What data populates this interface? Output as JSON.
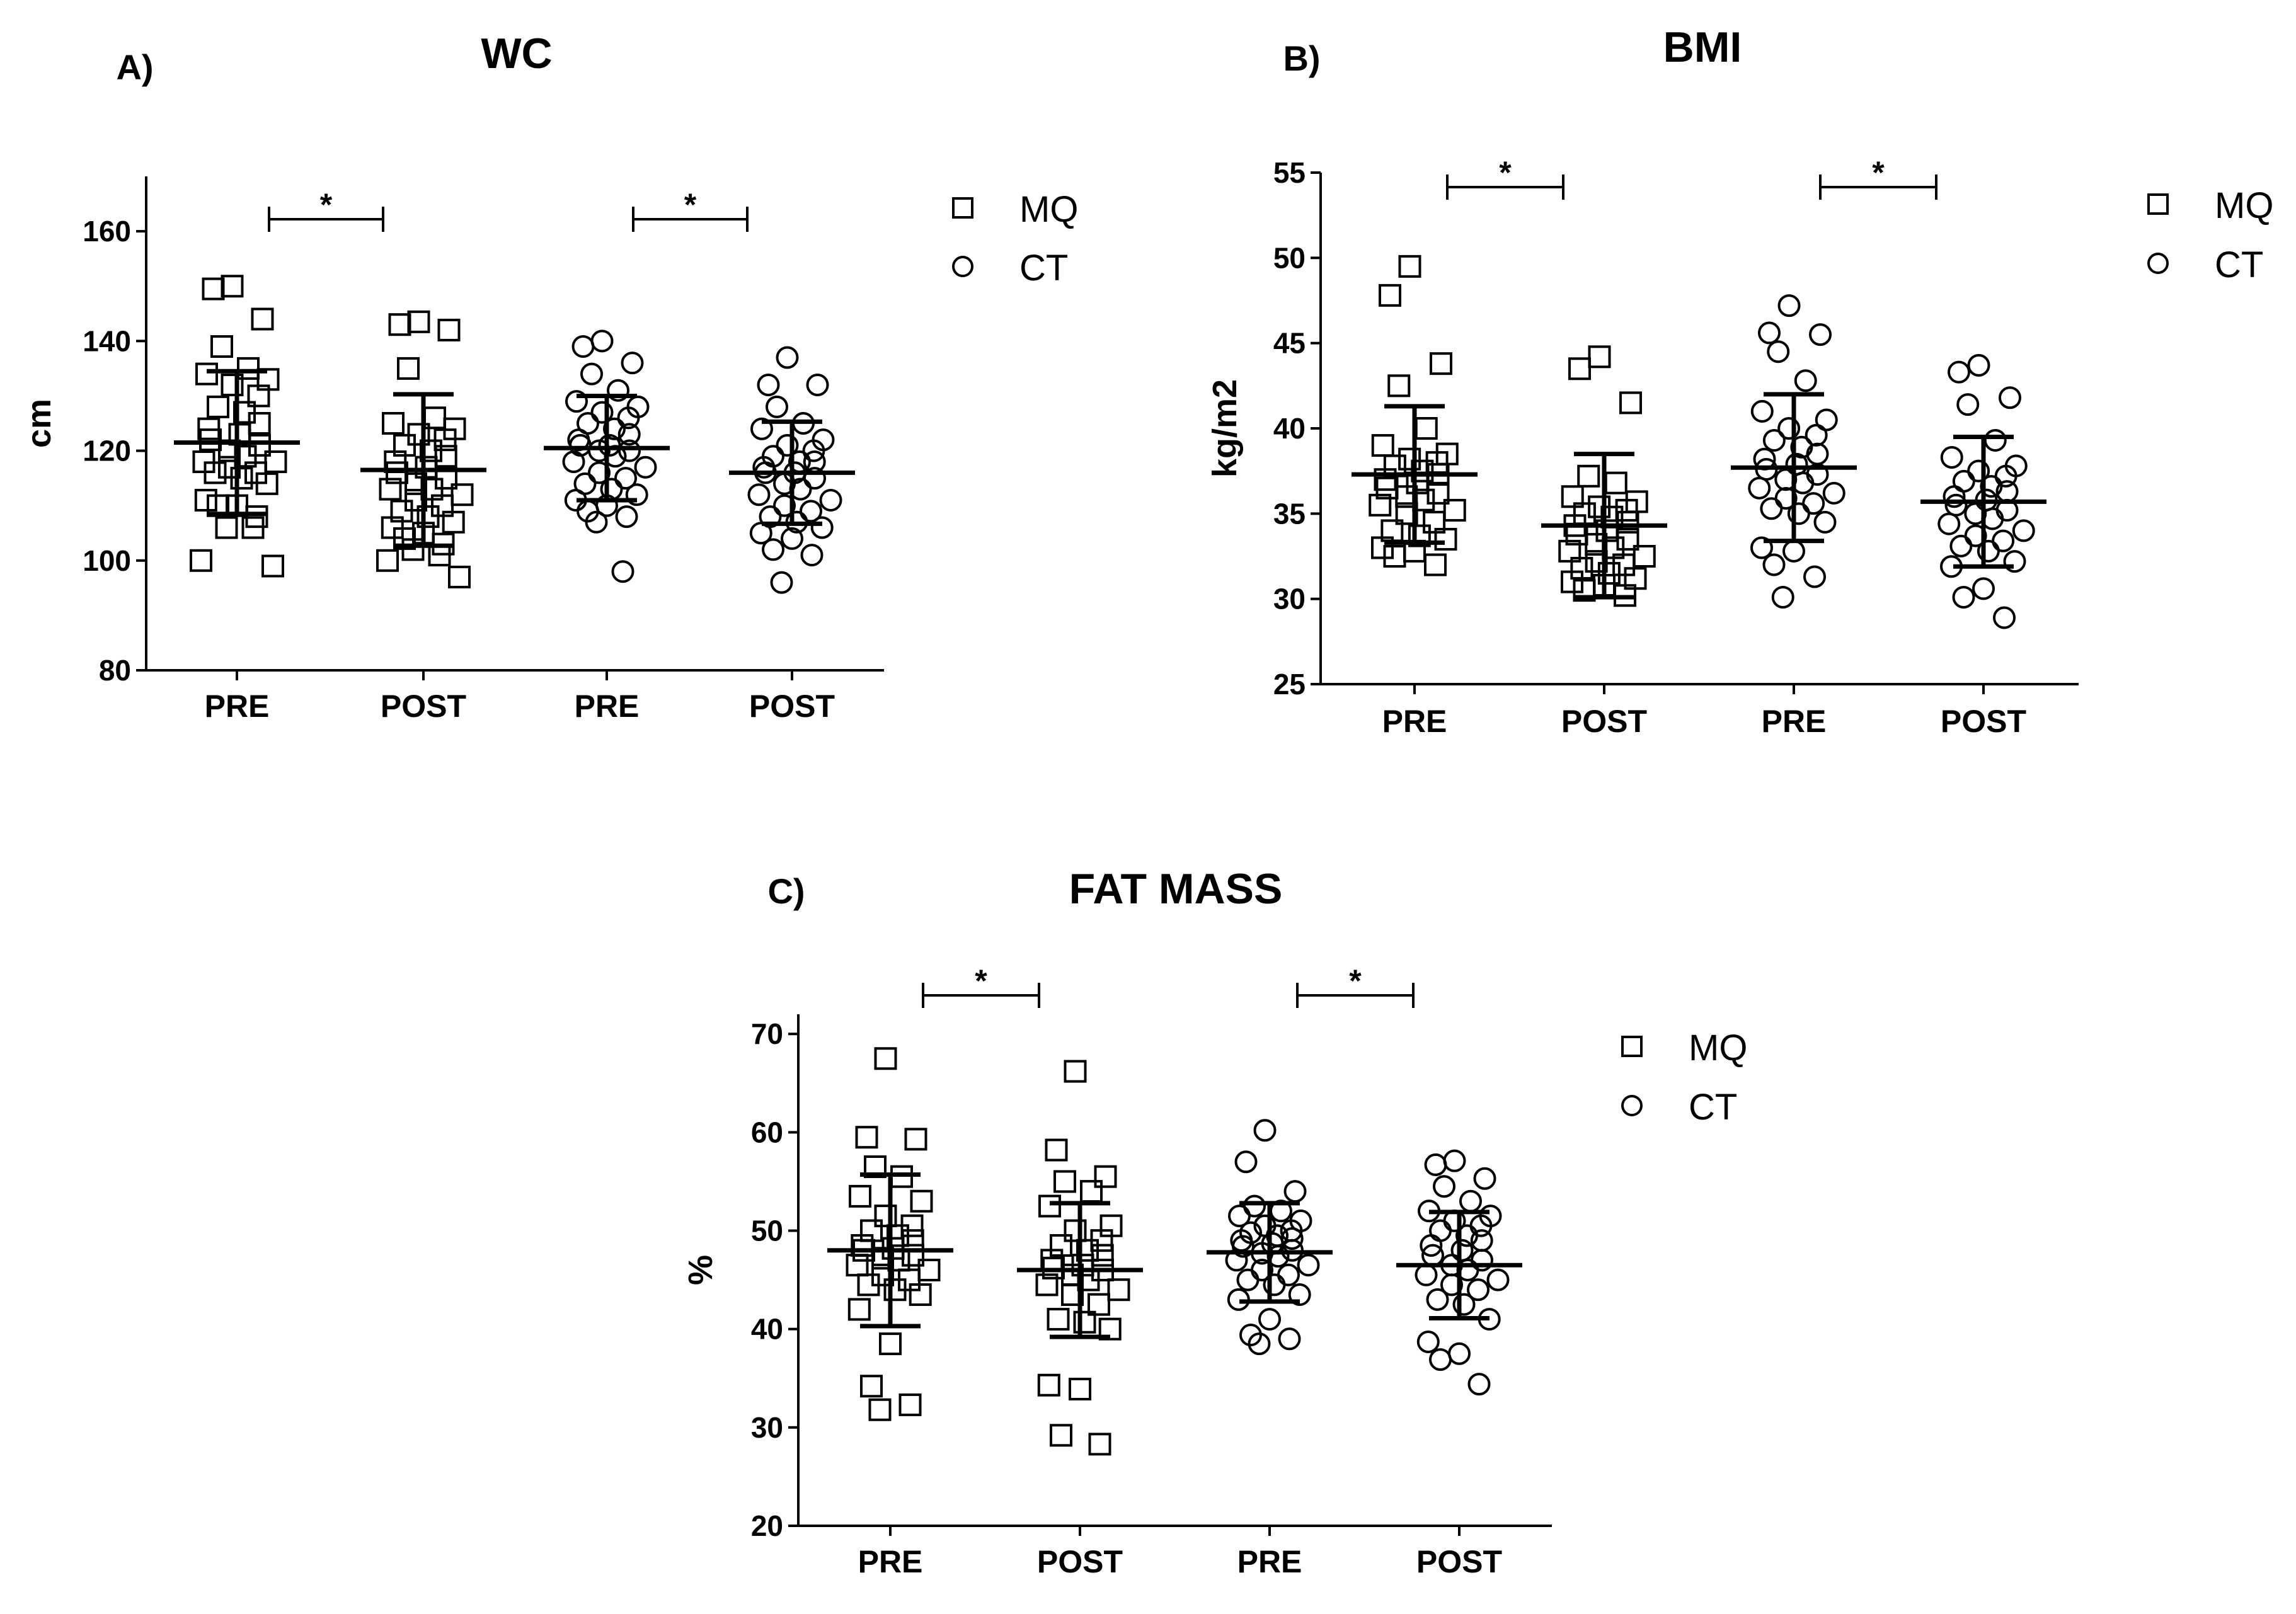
{
  "chart_data": [
    {
      "id": "wc",
      "panel": "A)",
      "type": "scatter",
      "title": "WC",
      "xlabel": "",
      "ylabel": "cm",
      "ylim": [
        80,
        170
      ],
      "yticks": [
        80,
        100,
        120,
        140,
        160
      ],
      "categories": [
        "PRE",
        "POST",
        "PRE",
        "POST"
      ],
      "legend": [
        {
          "label": "MQ",
          "marker": "square"
        },
        {
          "label": "CT",
          "marker": "circle"
        }
      ],
      "legend_position": "top-right",
      "significance": [
        {
          "from": 0,
          "to": 1,
          "label": "*",
          "y": 162
        },
        {
          "from": 2,
          "to": 3,
          "label": "*",
          "y": 162
        }
      ],
      "groups": [
        {
          "marker": "square",
          "mean": 121.5,
          "sd": 13,
          "values": [
            150,
            149.5,
            144,
            139,
            135,
            134,
            133,
            132,
            130,
            128,
            127,
            125,
            124,
            123,
            122,
            121,
            120,
            119,
            118,
            118,
            117,
            116,
            116,
            115,
            114,
            111,
            110,
            110,
            108,
            106,
            106,
            100,
            99
          ]
        },
        {
          "marker": "square",
          "mean": 116.5,
          "sd": 13.8,
          "values": [
            143.5,
            143,
            142,
            135,
            126,
            125,
            124,
            123,
            122,
            121,
            120,
            119,
            118,
            117,
            116,
            115,
            114,
            113,
            113,
            112,
            111,
            110,
            109,
            108,
            107,
            106,
            105,
            104,
            103,
            102,
            101,
            100,
            97
          ]
        },
        {
          "marker": "circle",
          "mean": 120.5,
          "sd": 9.5,
          "values": [
            140,
            139,
            136,
            134,
            131,
            129,
            128,
            127,
            126,
            125,
            124,
            123,
            122,
            121,
            121,
            120,
            120,
            119,
            118,
            117,
            116,
            115,
            114,
            113,
            112,
            111,
            110,
            109,
            108,
            107,
            98
          ]
        },
        {
          "marker": "circle",
          "mean": 116,
          "sd": 9.3,
          "values": [
            137,
            132,
            132,
            128,
            125,
            124,
            122,
            121,
            120,
            119,
            118,
            118,
            117,
            116,
            116,
            115,
            114,
            113,
            112,
            111,
            110,
            109,
            108,
            107,
            106,
            105,
            104,
            102,
            101,
            96
          ]
        }
      ]
    },
    {
      "id": "bmi",
      "panel": "B)",
      "type": "scatter",
      "title": "BMI",
      "xlabel": "",
      "ylabel": "kg/m2",
      "ylim": [
        25,
        55
      ],
      "yticks": [
        25,
        30,
        35,
        40,
        45,
        50,
        55
      ],
      "categories": [
        "PRE",
        "POST",
        "PRE",
        "POST"
      ],
      "legend": [
        {
          "label": "MQ",
          "marker": "square"
        },
        {
          "label": "CT",
          "marker": "circle"
        }
      ],
      "legend_position": "top-right",
      "significance": [
        {
          "from": 0,
          "to": 1,
          "label": "*",
          "y": 54
        },
        {
          "from": 2,
          "to": 3,
          "label": "*",
          "y": 54
        }
      ],
      "groups": [
        {
          "marker": "square",
          "mean": 37.3,
          "sd": 4,
          "values": [
            49.5,
            47.8,
            43.8,
            42.5,
            40,
            39,
            38.5,
            38.2,
            38,
            37.8,
            37.5,
            37.3,
            37,
            36.8,
            36.5,
            36.2,
            36,
            35.8,
            35.5,
            35.2,
            35,
            34.5,
            34,
            33.7,
            33.5,
            33,
            32.8,
            32.5,
            32
          ]
        },
        {
          "marker": "square",
          "mean": 34.3,
          "sd": 4.2,
          "values": [
            44.2,
            43.5,
            41.5,
            37.2,
            36.8,
            36,
            35.7,
            35.4,
            35.2,
            35,
            34.8,
            34.5,
            34.3,
            34,
            33.8,
            33.5,
            33.2,
            33,
            32.8,
            32.5,
            32.2,
            32,
            31.8,
            31.5,
            31.2,
            31,
            30.8,
            30.5,
            30.2
          ]
        },
        {
          "marker": "circle",
          "mean": 37.7,
          "sd": 4.3,
          "values": [
            47.2,
            45.6,
            45.5,
            44.5,
            42.8,
            41,
            40.5,
            40,
            39.6,
            39.3,
            38.9,
            38.5,
            38.2,
            37.9,
            37.6,
            37.3,
            37,
            36.8,
            36.5,
            36.2,
            35.9,
            35.6,
            35.3,
            35,
            34.5,
            33,
            32.8,
            32,
            31.3,
            30.1
          ]
        },
        {
          "marker": "circle",
          "mean": 35.7,
          "sd": 3.8,
          "values": [
            43.7,
            43.3,
            41.8,
            41.4,
            39.3,
            38.3,
            37.8,
            37.5,
            37.2,
            36.9,
            36.6,
            36.3,
            36,
            35.8,
            35.5,
            35.2,
            35,
            34.7,
            34.4,
            34,
            33.7,
            33.4,
            33.1,
            32.8,
            32.2,
            31.9,
            30.6,
            30.1,
            28.9
          ]
        }
      ]
    },
    {
      "id": "fatmass",
      "panel": "C)",
      "type": "scatter",
      "title": "FAT MASS",
      "xlabel": "",
      "ylabel": "%",
      "ylim": [
        20,
        72
      ],
      "yticks": [
        20,
        30,
        40,
        50,
        60,
        70
      ],
      "categories": [
        "PRE",
        "POST",
        "PRE",
        "POST"
      ],
      "legend": [
        {
          "label": "MQ",
          "marker": "square"
        },
        {
          "label": "CT",
          "marker": "circle"
        }
      ],
      "legend_position": "top-right",
      "significance": [
        {
          "from": 0,
          "to": 1,
          "label": "*",
          "y": 71
        },
        {
          "from": 2,
          "to": 3,
          "label": "*",
          "y": 71
        }
      ],
      "groups": [
        {
          "marker": "square",
          "mean": 48,
          "sd": 7.7,
          "values": [
            67.5,
            59.5,
            59.3,
            56.5,
            55.5,
            53.5,
            53,
            51.5,
            50.5,
            50,
            49.5,
            49,
            48.5,
            48.2,
            48,
            47.5,
            47.2,
            47,
            46.5,
            46,
            45.5,
            45,
            44.5,
            44,
            43.5,
            42,
            38.5,
            34.2,
            32.3,
            31.8
          ]
        },
        {
          "marker": "square",
          "mean": 46,
          "sd": 6.8,
          "values": [
            66.2,
            58.2,
            55.5,
            55,
            54,
            52.5,
            50.5,
            50,
            49,
            48.5,
            48,
            47.5,
            47,
            46.5,
            46.2,
            46,
            45.5,
            45,
            44.5,
            44,
            43.5,
            42.5,
            41,
            40.7,
            40,
            34.3,
            33.9,
            29.2,
            28.3
          ]
        },
        {
          "marker": "circle",
          "mean": 47.8,
          "sd": 5,
          "values": [
            60.2,
            57,
            54,
            52.5,
            52,
            51.5,
            51,
            50.5,
            50,
            49.8,
            49.5,
            49.2,
            49,
            48.7,
            48.4,
            48,
            47.7,
            47.4,
            47,
            46.5,
            46,
            45.5,
            45,
            44.5,
            43.5,
            43,
            41,
            39.4,
            39,
            38.5
          ]
        },
        {
          "marker": "circle",
          "mean": 46.5,
          "sd": 5.4,
          "values": [
            57.1,
            56.7,
            55.3,
            54.5,
            53,
            52,
            51.5,
            51,
            50.5,
            50,
            49.5,
            49,
            48.5,
            48,
            47.5,
            47,
            46.5,
            46,
            45.5,
            45,
            44.5,
            44,
            43,
            42.5,
            41,
            38.7,
            37.5,
            36.9,
            34.4
          ]
        }
      ]
    }
  ]
}
